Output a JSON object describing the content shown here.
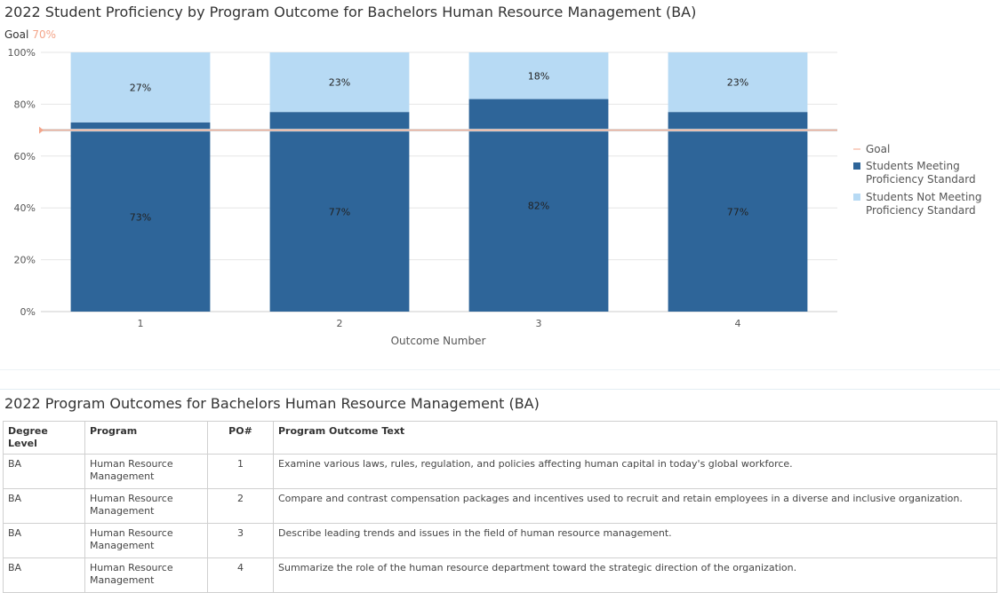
{
  "chart": {
    "title": "2022 Student Proficiency by Program Outcome for Bachelors Human Resource Management (BA)",
    "goal_caption_label": "Goal",
    "goal_caption_value": "70%"
  },
  "chart_data": {
    "type": "bar",
    "stacked": true,
    "title": "2022 Student Proficiency by Program Outcome for Bachelors Human Resource Management (BA)",
    "xlabel": "Outcome Number",
    "ylabel": "",
    "categories": [
      "1",
      "2",
      "3",
      "4"
    ],
    "ylim": [
      0,
      100
    ],
    "yticks": [
      "0%",
      "20%",
      "40%",
      "60%",
      "80%",
      "100%"
    ],
    "series": [
      {
        "name": "Students Meeting Proficiency Standard",
        "values": [
          73,
          77,
          82,
          77
        ],
        "labels": [
          "73%",
          "77%",
          "82%",
          "77%"
        ],
        "color": "#2e6599"
      },
      {
        "name": "Students Not Meeting Proficiency Standard",
        "values": [
          27,
          23,
          18,
          23
        ],
        "labels": [
          "27%",
          "23%",
          "18%",
          "23%"
        ],
        "color": "#b7daf4"
      }
    ],
    "goal": {
      "name": "Goal",
      "value": 70,
      "color": "#f4a58a"
    },
    "legend": [
      "Goal",
      "Students Meeting Proficiency Standard",
      "Students Not Meeting Proficiency Standard"
    ],
    "legend_position": "right",
    "grid": true
  },
  "table": {
    "title": "2022 Program Outcomes for Bachelors Human Resource Management (BA)",
    "headers": [
      "Degree Level",
      "Program",
      "PO#",
      "Program Outcome Text"
    ],
    "rows": [
      [
        "BA",
        "Human Resource Management",
        "1",
        "Examine various laws, rules, regulation, and policies affecting human capital in today's global workforce."
      ],
      [
        "BA",
        "Human Resource Management",
        "2",
        "Compare and contrast compensation packages and incentives used to recruit and retain employees in a diverse and inclusive organization."
      ],
      [
        "BA",
        "Human Resource Management",
        "3",
        "Describe leading trends and issues in the field of human resource management."
      ],
      [
        "BA",
        "Human Resource Management",
        "4",
        "Summarize the role of the human resource department toward the strategic direction of the organization."
      ]
    ]
  }
}
